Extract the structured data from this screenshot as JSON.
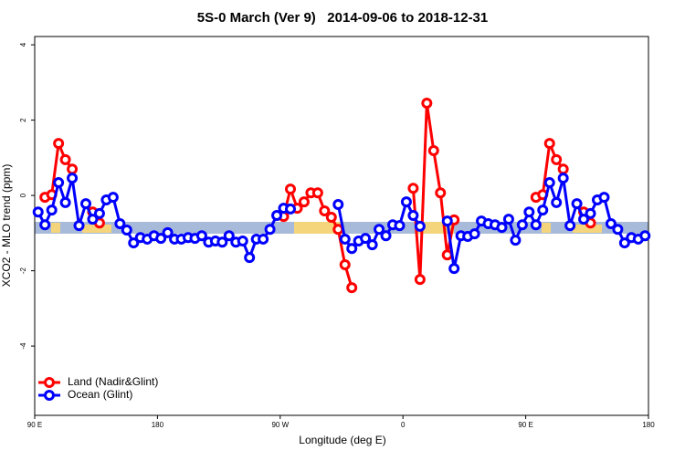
{
  "chart_data": {
    "type": "line",
    "title": "5S-0 March (Ver 9)   2014-09-06 to 2018-12-31",
    "x_label": "Longitude (deg E)",
    "y_label": "XCO2 - MLO trend (ppm)",
    "x": [
      92.5,
      97.5,
      102.5,
      107.5,
      112.5,
      117.5,
      122.5,
      127.5,
      132.5,
      137.5,
      142.5,
      147.5,
      152.5,
      157.5,
      162.5,
      167.5,
      172.5,
      177.5,
      182.5,
      187.5,
      192.5,
      197.5,
      202.5,
      207.5,
      212.5,
      217.5,
      222.5,
      227.5,
      232.5,
      237.5,
      242.5,
      247.5,
      252.5,
      257.5,
      262.5,
      267.5,
      272.5,
      277.5,
      282.5,
      287.5,
      292.5,
      297.5,
      302.5,
      307.5,
      312.5,
      317.5,
      322.5,
      327.5,
      332.5,
      337.5,
      342.5,
      347.5,
      352.5,
      357.5,
      362.5,
      367.5,
      372.5,
      377.5,
      382.5,
      387.5,
      392.5,
      397.5,
      402.5,
      407.5,
      412.5,
      417.5,
      422.5,
      427.5,
      432.5,
      437.5,
      442.5,
      447.5,
      452.5,
      457.5,
      462.5,
      467.5,
      472.5,
      477.5,
      482.5,
      487.5,
      492.5,
      497.5,
      502.5,
      507.5,
      512.5,
      517.5,
      522.5,
      527.5,
      532.5,
      537.5
    ],
    "series": [
      {
        "name": "Land (Nadir&Glint)",
        "color": "#ff0000",
        "values": [
          null,
          -0.05,
          0.02,
          1.38,
          0.95,
          0.7,
          null,
          null,
          -0.44,
          -0.73,
          null,
          null,
          null,
          null,
          null,
          null,
          null,
          null,
          null,
          null,
          null,
          null,
          null,
          null,
          null,
          null,
          null,
          null,
          null,
          null,
          null,
          null,
          null,
          null,
          null,
          null,
          -0.56,
          0.17,
          -0.34,
          -0.17,
          0.07,
          0.07,
          -0.41,
          -0.58,
          -0.9,
          -1.84,
          -2.45,
          null,
          null,
          null,
          null,
          null,
          null,
          null,
          null,
          0.19,
          -2.23,
          2.45,
          1.19,
          0.07,
          -1.58,
          -0.65,
          null,
          null,
          null,
          null,
          null,
          null,
          null,
          null,
          null,
          null,
          null,
          -0.05,
          0.02,
          1.38,
          0.95,
          0.7,
          null,
          null,
          -0.44,
          -0.73,
          null,
          null,
          null,
          null,
          null,
          null,
          null,
          null
        ]
      },
      {
        "name": "Ocean (Glint)",
        "color": "#0000ff",
        "values": [
          -0.44,
          -0.78,
          -0.39,
          0.34,
          -0.19,
          0.46,
          -0.8,
          -0.22,
          -0.63,
          -0.48,
          -0.12,
          -0.05,
          -0.75,
          -0.92,
          -1.26,
          -1.12,
          -1.16,
          -1.07,
          -1.14,
          -0.99,
          -1.16,
          -1.16,
          -1.12,
          -1.14,
          -1.07,
          -1.24,
          -1.21,
          -1.24,
          -1.07,
          -1.24,
          -1.21,
          -1.65,
          -1.16,
          -1.16,
          -0.9,
          -0.53,
          -0.34,
          -0.36,
          null,
          null,
          null,
          null,
          null,
          null,
          -0.24,
          -1.16,
          -1.41,
          -1.21,
          -1.14,
          -1.31,
          -0.9,
          -1.07,
          -0.78,
          -0.8,
          -0.17,
          -0.53,
          -0.82,
          null,
          null,
          null,
          -0.68,
          -1.94,
          -1.07,
          -1.09,
          -1.02,
          -0.68,
          -0.75,
          -0.78,
          -0.85,
          -0.63,
          -1.19,
          -0.78,
          -0.44,
          -0.78,
          -0.39,
          0.34,
          -0.19,
          0.46,
          -0.8,
          -0.22,
          -0.63,
          -0.48,
          -0.12,
          -0.05,
          -0.75,
          -0.9,
          -1.26,
          -1.12,
          -1.16,
          -1.07
        ]
      }
    ],
    "xlim": [
      90,
      540
    ],
    "xticks": [
      {
        "value": 90,
        "label": "90 E"
      },
      180,
      {
        "value": 270,
        "label": "90 W"
      },
      {
        "value": 360,
        "label": "0"
      },
      {
        "value": 450,
        "label": "90 E"
      },
      {
        "value": 540,
        "label": "180"
      }
    ],
    "ylim": [
      -5.84,
      4.22
    ],
    "yticks": [
      4,
      2,
      0,
      -2,
      -4
    ],
    "legend": "bottom-left"
  }
}
